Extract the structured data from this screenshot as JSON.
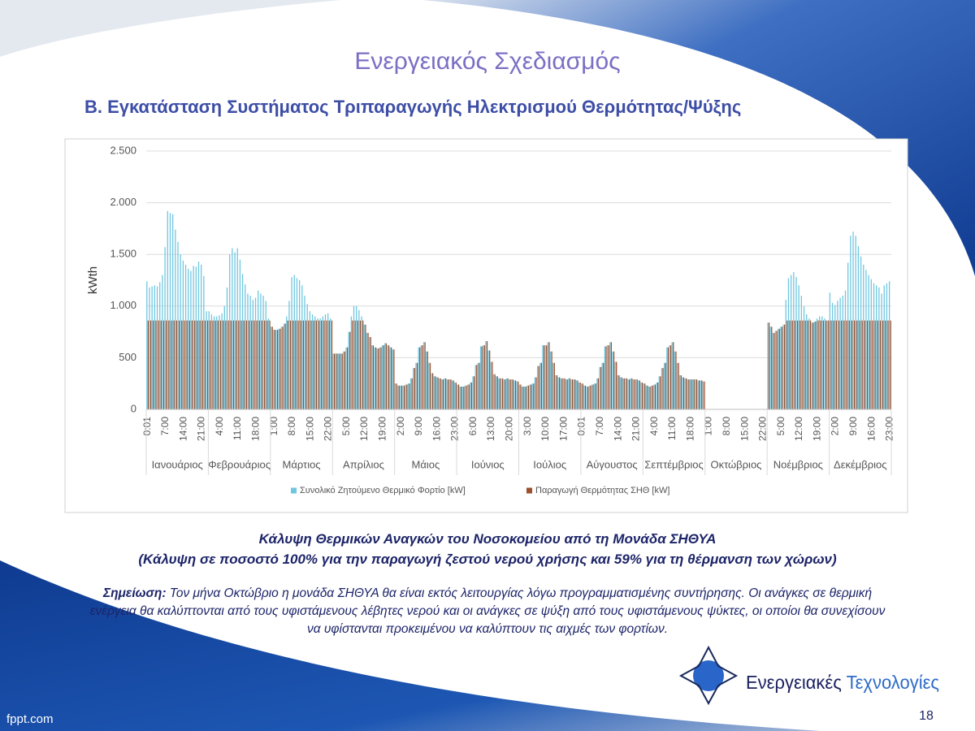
{
  "slide": {
    "title": "Ενεργειακός Σχεδιασμός",
    "subtitle": "B. Εγκατάσταση Συστήματος Τριπαραγωγής Ηλεκτρισμού Θερμότητας/Ψύξης",
    "caption": {
      "line1": "Κάλυψη Θερμικών Αναγκών του Νοσοκομείου από τη Μονάδα ΣΗΘΥΑ",
      "line2": "(Κάλυψη σε ποσοστό 100% για την παραγωγή ζεστού νερού χρήσης και 59% για τη θέρμανση των χώρων)"
    },
    "note": {
      "label": "Σημείωση:",
      "text": "Τον μήνα Οκτώβριο η μονάδα ΣΗΘΥΑ θα είναι εκτός λειτουργίας λόγω προγραμματισμένης συντήρησης. Οι ανάγκες σε θερμική ενέργεια θα καλύπτονται από τους υφιστάμενους λέβητες νερού και οι ανάγκες σε ψύξη από τους υφιστάμενους ψύκτες, οι οποίοι θα συνεχίσουν να υφίστανται προκειμένου να καλύπτουν τις αιχμές των φορτίων."
    },
    "logo": {
      "word1": "Ενεργειακές",
      "word2": "Τεχνολογίες"
    },
    "page_number": "18",
    "footer": "fppt.com"
  },
  "chart_data": {
    "type": "bar",
    "y_label": "kWth",
    "ylim": [
      0,
      2500
    ],
    "yticks": [
      0,
      500,
      {
        "value": 1000,
        "label": "1.000"
      },
      {
        "value": 1500,
        "label": "1.500"
      },
      {
        "value": 2000,
        "label": "2.000"
      },
      {
        "value": 2500,
        "label": "2.500"
      }
    ],
    "grid": true,
    "legend": "bottom",
    "group_labels": [
      "Ιανουάριος",
      "Φεβρουάριος",
      "Μάρτιος",
      "Απρίλιος",
      "Μάιος",
      "Ιούνιος",
      "Ιούλιος",
      "Αύγουστος",
      "Σεπτέμβριος",
      "Οκτώβριος",
      "Νοέμβριος",
      "Δεκέμβριος"
    ],
    "categories": [
      "0:01",
      null,
      null,
      null,
      null,
      null,
      null,
      "7:00",
      null,
      null,
      null,
      null,
      null,
      null,
      "14:00",
      null,
      null,
      null,
      null,
      null,
      null,
      "21:00",
      null,
      null,
      null,
      null,
      null,
      null,
      "4:00",
      null,
      null,
      null,
      null,
      null,
      null,
      "11:00",
      null,
      null,
      null,
      null,
      null,
      null,
      "18:00",
      null,
      null,
      null,
      null,
      null,
      null,
      "1:00",
      null,
      null,
      null,
      null,
      null,
      null,
      "8:00",
      null,
      null,
      null,
      null,
      null,
      null,
      "15:00",
      null,
      null,
      null,
      null,
      null,
      null,
      "22:00",
      null,
      null,
      null,
      null,
      null,
      null,
      "5:00",
      null,
      null,
      null,
      null,
      null,
      null,
      "12:00",
      null,
      null,
      null,
      null,
      null,
      null,
      "19:00",
      null,
      null,
      null,
      null,
      null,
      null,
      "2:00",
      null,
      null,
      null,
      null,
      null,
      null,
      "9:00",
      null,
      null,
      null,
      null,
      null,
      null,
      "16:00",
      null,
      null,
      null,
      null,
      null,
      null,
      "23:00",
      null,
      null,
      null,
      null,
      null,
      null,
      "6:00",
      null,
      null,
      null,
      null,
      null,
      null,
      "13:00",
      null,
      null,
      null,
      null,
      null,
      null,
      "20:00",
      null,
      null,
      null,
      null,
      null,
      null,
      "3:00",
      null,
      null,
      null,
      null,
      null,
      null,
      "10:00",
      null,
      null,
      null,
      null,
      null,
      null,
      "17:00",
      null,
      null,
      null,
      null,
      null,
      null,
      "0:01",
      null,
      null,
      null,
      null,
      null,
      null,
      "7:00",
      null,
      null,
      null,
      null,
      null,
      null,
      "14:00",
      null,
      null,
      null,
      null,
      null,
      null,
      "21:00",
      null,
      null,
      null,
      null,
      null,
      null,
      "4:00",
      null,
      null,
      null,
      null,
      null,
      null,
      "11:00",
      null,
      null,
      null,
      null,
      null,
      null,
      "18:00",
      null,
      null,
      null,
      null,
      null,
      null,
      "1:00",
      null,
      null,
      null,
      null,
      null,
      null,
      "8:00",
      null,
      null,
      null,
      null,
      null,
      null,
      "15:00",
      null,
      null,
      null,
      null,
      null,
      null,
      "22:00",
      null,
      null,
      null,
      null,
      null,
      null,
      "5:00",
      null,
      null,
      null,
      null,
      null,
      null,
      "12:00",
      null,
      null,
      null,
      null,
      null,
      null,
      "19:00",
      null,
      null,
      null,
      null,
      null,
      null,
      "2:00",
      null,
      null,
      null,
      null,
      null,
      null,
      "9:00",
      null,
      null,
      null,
      null,
      null,
      null,
      "16:00",
      null,
      null,
      null,
      null,
      null,
      null,
      "23:00"
    ],
    "series": [
      {
        "name": "Συνολικό Ζητούμενο Θερμικό Φορτίο [kW]",
        "color": "#6ec6e0",
        "values": [
          1240,
          1180,
          1190,
          1200,
          1190,
          1230,
          1300,
          1570,
          1920,
          1900,
          1890,
          1740,
          1620,
          1500,
          1440,
          1400,
          1360,
          1340,
          1390,
          1380,
          1430,
          1400,
          1290,
          950,
          950,
          920,
          900,
          900,
          910,
          930,
          1000,
          1180,
          1500,
          1560,
          1520,
          1560,
          1450,
          1310,
          1210,
          1120,
          1100,
          1060,
          1080,
          1150,
          1120,
          1100,
          1050,
          880,
          800,
          770,
          770,
          780,
          800,
          830,
          900,
          1050,
          1280,
          1300,
          1270,
          1250,
          1200,
          1100,
          1020,
          950,
          920,
          900,
          880,
          880,
          900,
          920,
          930,
          880,
          540,
          540,
          540,
          540,
          560,
          600,
          750,
          900,
          1000,
          1000,
          960,
          900,
          820,
          740,
          700,
          620,
          600,
          590,
          600,
          620,
          640,
          620,
          600,
          580,
          250,
          230,
          230,
          230,
          240,
          250,
          300,
          400,
          450,
          600,
          620,
          650,
          560,
          450,
          350,
          320,
          310,
          300,
          290,
          300,
          290,
          290,
          280,
          260,
          240,
          220,
          220,
          230,
          240,
          260,
          320,
          430,
          450,
          610,
          620,
          660,
          570,
          460,
          340,
          320,
          300,
          300,
          290,
          300,
          290,
          290,
          280,
          270,
          240,
          220,
          220,
          230,
          240,
          250,
          310,
          420,
          450,
          620,
          620,
          650,
          560,
          450,
          330,
          310,
          300,
          300,
          290,
          300,
          290,
          290,
          280,
          260,
          250,
          230,
          220,
          230,
          240,
          250,
          300,
          410,
          450,
          610,
          620,
          650,
          560,
          460,
          330,
          310,
          300,
          300,
          290,
          300,
          290,
          290,
          280,
          260,
          250,
          230,
          220,
          230,
          240,
          260,
          320,
          400,
          450,
          600,
          620,
          650,
          560,
          450,
          330,
          310,
          300,
          290,
          290,
          290,
          290,
          280,
          280,
          270,
          0,
          0,
          0,
          0,
          0,
          0,
          0,
          0,
          0,
          0,
          0,
          0,
          0,
          0,
          0,
          0,
          0,
          0,
          0,
          0,
          0,
          0,
          0,
          0,
          840,
          800,
          740,
          760,
          780,
          800,
          820,
          1060,
          1270,
          1300,
          1330,
          1280,
          1200,
          1100,
          1000,
          920,
          880,
          840,
          850,
          880,
          900,
          900,
          880,
          860,
          1130,
          1030,
          1010,
          1050,
          1080,
          1100,
          1150,
          1420,
          1680,
          1720,
          1680,
          1580,
          1480,
          1400,
          1350,
          1300,
          1260,
          1220,
          1200,
          1180,
          1120,
          1200,
          1220,
          1240
        ]
      },
      {
        "name": "Παραγωγή Θερμότητας ΣΗΘ [kW]",
        "color": "#9c4f2e",
        "values": [
          860,
          860,
          860,
          860,
          860,
          860,
          860,
          860,
          860,
          860,
          860,
          860,
          860,
          860,
          860,
          860,
          860,
          860,
          860,
          860,
          860,
          860,
          860,
          860,
          860,
          860,
          860,
          860,
          860,
          860,
          860,
          860,
          860,
          860,
          860,
          860,
          860,
          860,
          860,
          860,
          860,
          860,
          860,
          860,
          860,
          860,
          860,
          860,
          800,
          770,
          770,
          780,
          800,
          830,
          860,
          860,
          860,
          860,
          860,
          860,
          860,
          860,
          860,
          860,
          860,
          860,
          860,
          860,
          860,
          860,
          860,
          860,
          540,
          540,
          540,
          540,
          560,
          600,
          750,
          860,
          860,
          860,
          860,
          860,
          820,
          740,
          700,
          620,
          600,
          590,
          600,
          620,
          640,
          620,
          600,
          580,
          250,
          230,
          230,
          230,
          240,
          250,
          300,
          400,
          450,
          600,
          620,
          650,
          560,
          450,
          350,
          320,
          310,
          300,
          290,
          300,
          290,
          290,
          280,
          260,
          240,
          220,
          220,
          230,
          240,
          260,
          320,
          430,
          450,
          610,
          620,
          660,
          570,
          460,
          340,
          320,
          300,
          300,
          290,
          300,
          290,
          290,
          280,
          270,
          240,
          220,
          220,
          230,
          240,
          250,
          310,
          420,
          450,
          620,
          620,
          650,
          560,
          450,
          330,
          310,
          300,
          300,
          290,
          300,
          290,
          290,
          280,
          260,
          250,
          230,
          220,
          230,
          240,
          250,
          300,
          410,
          450,
          610,
          620,
          650,
          560,
          460,
          330,
          310,
          300,
          300,
          290,
          300,
          290,
          290,
          280,
          260,
          250,
          230,
          220,
          230,
          240,
          260,
          320,
          400,
          450,
          600,
          620,
          650,
          560,
          450,
          330,
          310,
          300,
          290,
          290,
          290,
          290,
          280,
          280,
          270,
          0,
          0,
          0,
          0,
          0,
          0,
          0,
          0,
          0,
          0,
          0,
          0,
          0,
          0,
          0,
          0,
          0,
          0,
          0,
          0,
          0,
          0,
          0,
          0,
          840,
          800,
          740,
          760,
          780,
          800,
          820,
          860,
          860,
          860,
          860,
          860,
          860,
          860,
          860,
          860,
          860,
          840,
          850,
          860,
          860,
          860,
          860,
          860,
          860,
          860,
          860,
          860,
          860,
          860,
          860,
          860,
          860,
          860,
          860,
          860,
          860,
          860,
          860,
          860,
          860,
          860,
          860,
          860,
          860,
          860,
          860,
          860
        ]
      }
    ]
  }
}
